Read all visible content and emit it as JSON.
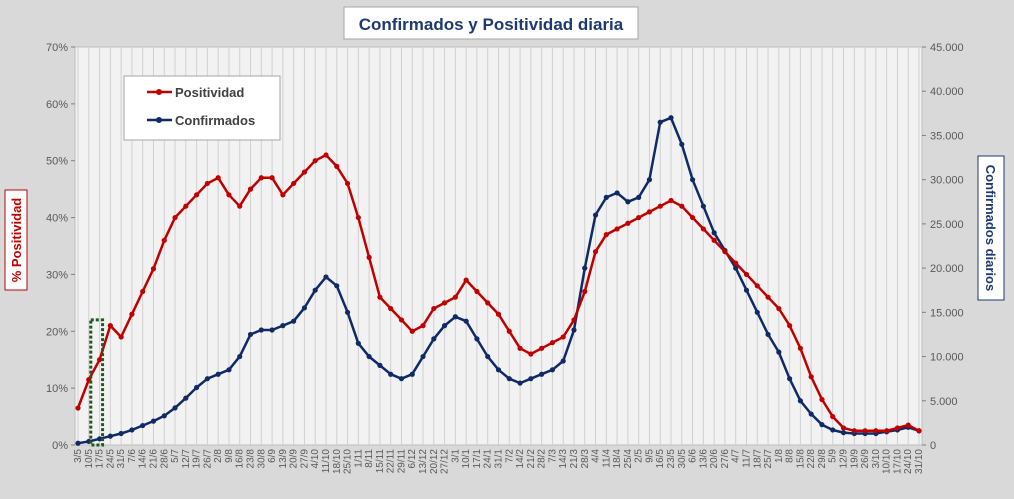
{
  "chart_data": {
    "type": "line",
    "title": "Confirmados  y Positividad  diaria",
    "ylabel_left": "% Positividad",
    "ylabel_right": "Confirmados diarios",
    "ylim_left": [
      0,
      70
    ],
    "ylim_right": [
      0,
      45000
    ],
    "yticks_left": [
      "0%",
      "10%",
      "20%",
      "30%",
      "40%",
      "50%",
      "60%",
      "70%"
    ],
    "yticks_right": [
      "0",
      "5.000",
      "10.000",
      "15.000",
      "20.000",
      "25.000",
      "30.000",
      "35.000",
      "40.000",
      "45.000"
    ],
    "grid": true,
    "legend_position": "top-left",
    "colors": {
      "positividad": "#c00000",
      "confirmados": "#0f2a66",
      "highlight": "#1e5a1e"
    },
    "x_labels": [
      "3/5",
      "10/5",
      "17/5",
      "24/5",
      "31/5",
      "7/6",
      "14/6",
      "21/6",
      "28/6",
      "5/7",
      "12/7",
      "19/7",
      "26/7",
      "2/8",
      "9/8",
      "16/8",
      "23/8",
      "30/8",
      "6/9",
      "13/9",
      "20/9",
      "27/9",
      "4/10",
      "11/10",
      "18/10",
      "25/10",
      "1/11",
      "8/11",
      "15/11",
      "22/11",
      "29/11",
      "6/12",
      "13/12",
      "20/12",
      "27/12",
      "3/1",
      "10/1",
      "17/1",
      "24/1",
      "31/1",
      "7/2",
      "14/2",
      "21/2",
      "28/2",
      "7/3",
      "14/3",
      "21/3",
      "28/3",
      "4/4",
      "11/4",
      "18/4",
      "25/4",
      "2/5",
      "9/5",
      "16/5",
      "23/5",
      "30/5",
      "6/6",
      "13/6",
      "20/6",
      "27/6",
      "4/7",
      "11/7",
      "18/7",
      "25/7",
      "1/8",
      "8/8",
      "15/8",
      "22/8",
      "29/8",
      "5/9",
      "12/9",
      "19/9",
      "26/9",
      "3/10",
      "10/10",
      "17/10",
      "24/10",
      "31/10"
    ],
    "series": [
      {
        "name": "Positividad",
        "unit": "%",
        "values": [
          6.5,
          11.5,
          15,
          21,
          19,
          23,
          27,
          31,
          36,
          40,
          42,
          44,
          46,
          47,
          44,
          42,
          45,
          47,
          47,
          44,
          46,
          48,
          50,
          51,
          49,
          46,
          40,
          33,
          26,
          24,
          22,
          20,
          21,
          24,
          25,
          26,
          29,
          27,
          25,
          23,
          20,
          17,
          16,
          17,
          18,
          19,
          22,
          27,
          34,
          37,
          38,
          39,
          40,
          41,
          42,
          43,
          42,
          40,
          38,
          36,
          34,
          32,
          30,
          28,
          26,
          24,
          21,
          17,
          12,
          8,
          5,
          3,
          2.5,
          2.5,
          2.5,
          2.5,
          3,
          3.5,
          2.5
        ]
      },
      {
        "name": "Confirmados",
        "unit": "casos",
        "values": [
          200,
          400,
          700,
          1000,
          1300,
          1700,
          2200,
          2700,
          3300,
          4200,
          5300,
          6500,
          7500,
          8000,
          8500,
          10000,
          12500,
          13000,
          13000,
          13500,
          14000,
          15500,
          17500,
          19000,
          18000,
          15000,
          11500,
          10000,
          9000,
          8000,
          7500,
          8000,
          10000,
          12000,
          13500,
          14500,
          14000,
          12000,
          10000,
          8500,
          7500,
          7000,
          7500,
          8000,
          8500,
          9500,
          13000,
          20000,
          26000,
          28000,
          28500,
          27500,
          28000,
          30000,
          36500,
          37000,
          34000,
          30000,
          27000,
          24000,
          22000,
          20000,
          17500,
          15000,
          12500,
          10500,
          7500,
          5000,
          3500,
          2300,
          1700,
          1400,
          1300,
          1300,
          1300,
          1500,
          1700,
          2000,
          1600
        ]
      }
    ],
    "annotation": "Recuadro punteado verde sobre el inicio de la serie (10/5 – 17/5)"
  }
}
